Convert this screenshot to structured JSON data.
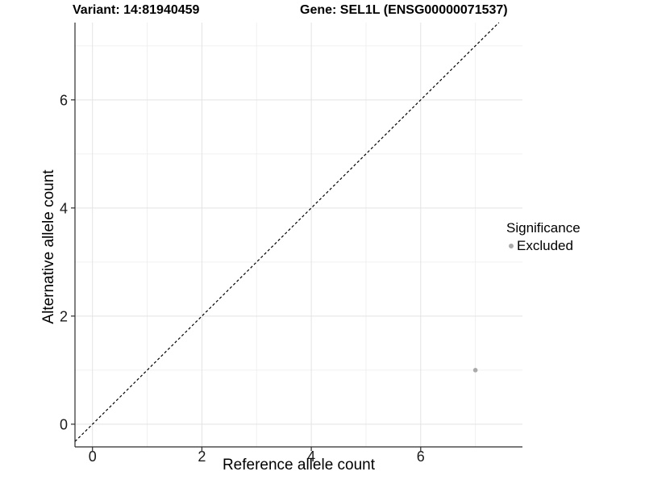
{
  "chart_data": {
    "type": "scatter",
    "titles": {
      "left": "Variant: 14:81940459",
      "right": "Gene: SEL1L (ENSG00000071537)"
    },
    "xlabel": "Reference allele count",
    "ylabel": "Alternative allele count",
    "xlim": [
      -0.32,
      7.86
    ],
    "ylim": [
      -0.42,
      7.43
    ],
    "x_ticks": [
      0,
      2,
      4,
      6
    ],
    "y_ticks": [
      0,
      2,
      4,
      6
    ],
    "x_minor_ticks": [
      1,
      3,
      5,
      7
    ],
    "y_minor_ticks": [
      1,
      3,
      5,
      7
    ],
    "grid": {
      "major": true,
      "minor": true,
      "major_color": "#e3e3e3",
      "minor_color": "#f0f0f0"
    },
    "axis_color": "#2b2b2b",
    "tick_label_color": "#1a1a1a",
    "reference_line": {
      "type": "identity",
      "equation": "y = x",
      "style": "dashed",
      "color": "#000000"
    },
    "series": [
      {
        "name": "Excluded",
        "marker": "circle",
        "color": "#aaaaaa",
        "points": [
          [
            7,
            1
          ]
        ]
      }
    ],
    "legend": {
      "title": "Significance",
      "position": "right",
      "entries": [
        {
          "label": "Excluded",
          "color": "#aaaaaa"
        }
      ]
    }
  }
}
